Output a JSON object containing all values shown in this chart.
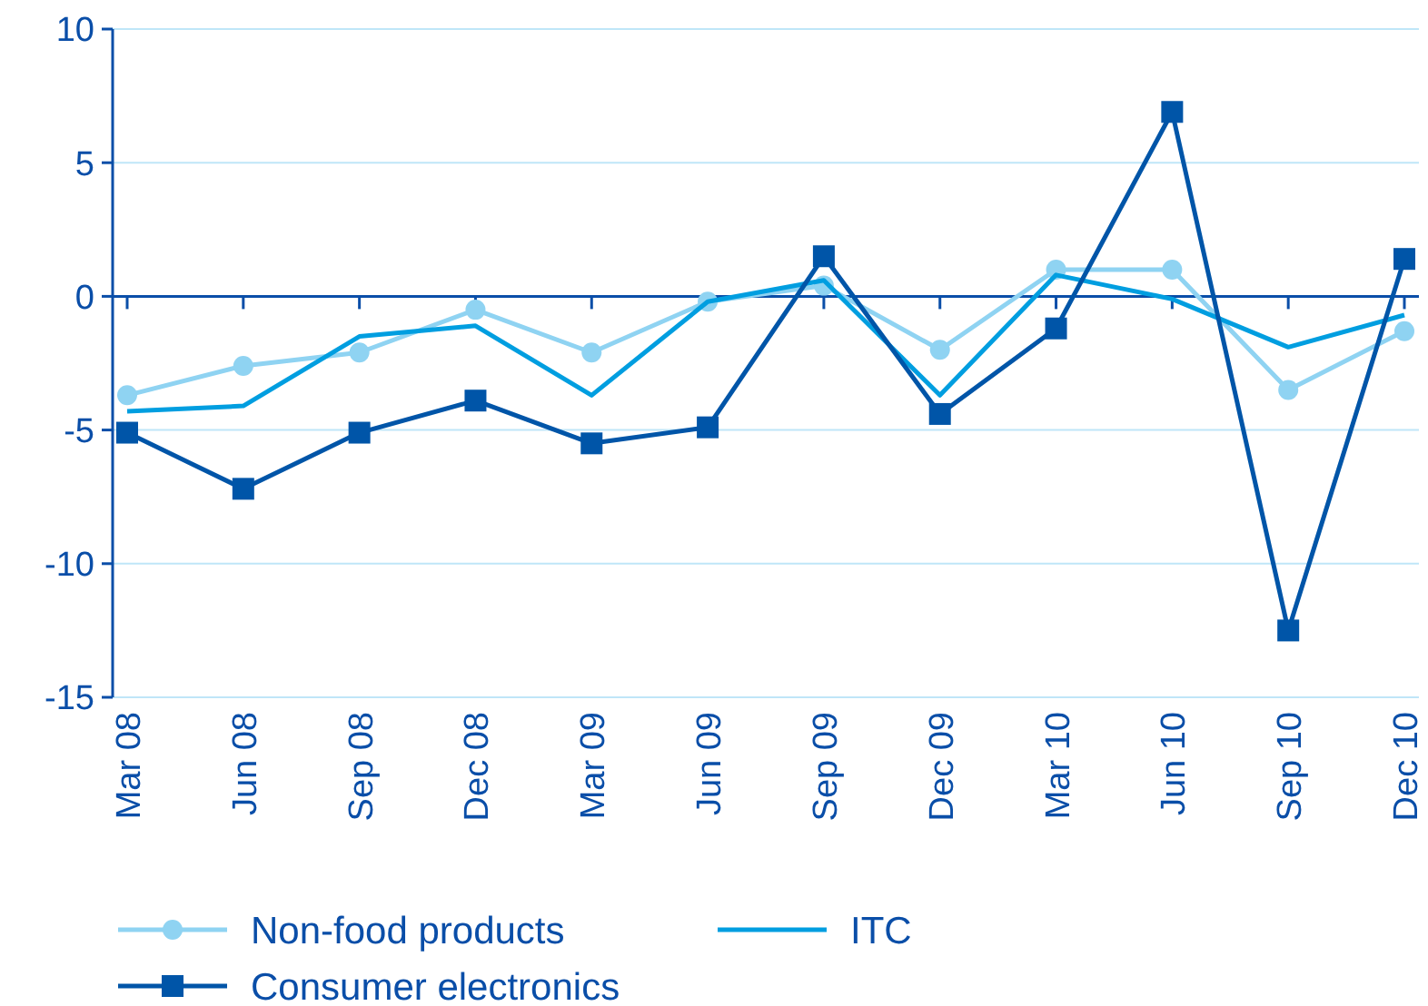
{
  "chart_data": {
    "type": "line",
    "categories": [
      "Mar 08",
      "Jun 08",
      "Sep 08",
      "Dec 08",
      "Mar 09",
      "Jun 09",
      "Sep 09",
      "Dec 09",
      "Mar 10",
      "Jun 10",
      "Sep 10",
      "Dec 10"
    ],
    "ylim": [
      -15,
      10
    ],
    "yticks": [
      -15,
      -10,
      -5,
      0,
      5,
      10
    ],
    "grid": "y",
    "legend": "bottom",
    "ref_lines": [
      {
        "axis": "y",
        "value": 0,
        "color": "#0a4ea8"
      }
    ],
    "series": [
      {
        "name": "Non-food products",
        "color": "#8fd3f2",
        "marker": "circle",
        "values": [
          -3.7,
          -2.6,
          -2.1,
          -0.5,
          -2.1,
          -0.2,
          0.4,
          -2.0,
          1.0,
          1.0,
          -3.5,
          -1.3
        ]
      },
      {
        "name": "ITC",
        "color": "#009ee0",
        "marker": "none",
        "values": [
          -4.3,
          -4.1,
          -1.5,
          -1.1,
          -3.7,
          -0.2,
          0.6,
          -3.7,
          0.8,
          -0.1,
          -1.9,
          -0.7
        ]
      },
      {
        "name": "Consumer electronics",
        "color": "#0055a8",
        "marker": "square",
        "values": [
          -5.1,
          -7.2,
          -5.1,
          -3.9,
          -5.5,
          -4.9,
          1.5,
          -4.4,
          -1.2,
          6.9,
          -12.5,
          1.4
        ]
      }
    ]
  }
}
